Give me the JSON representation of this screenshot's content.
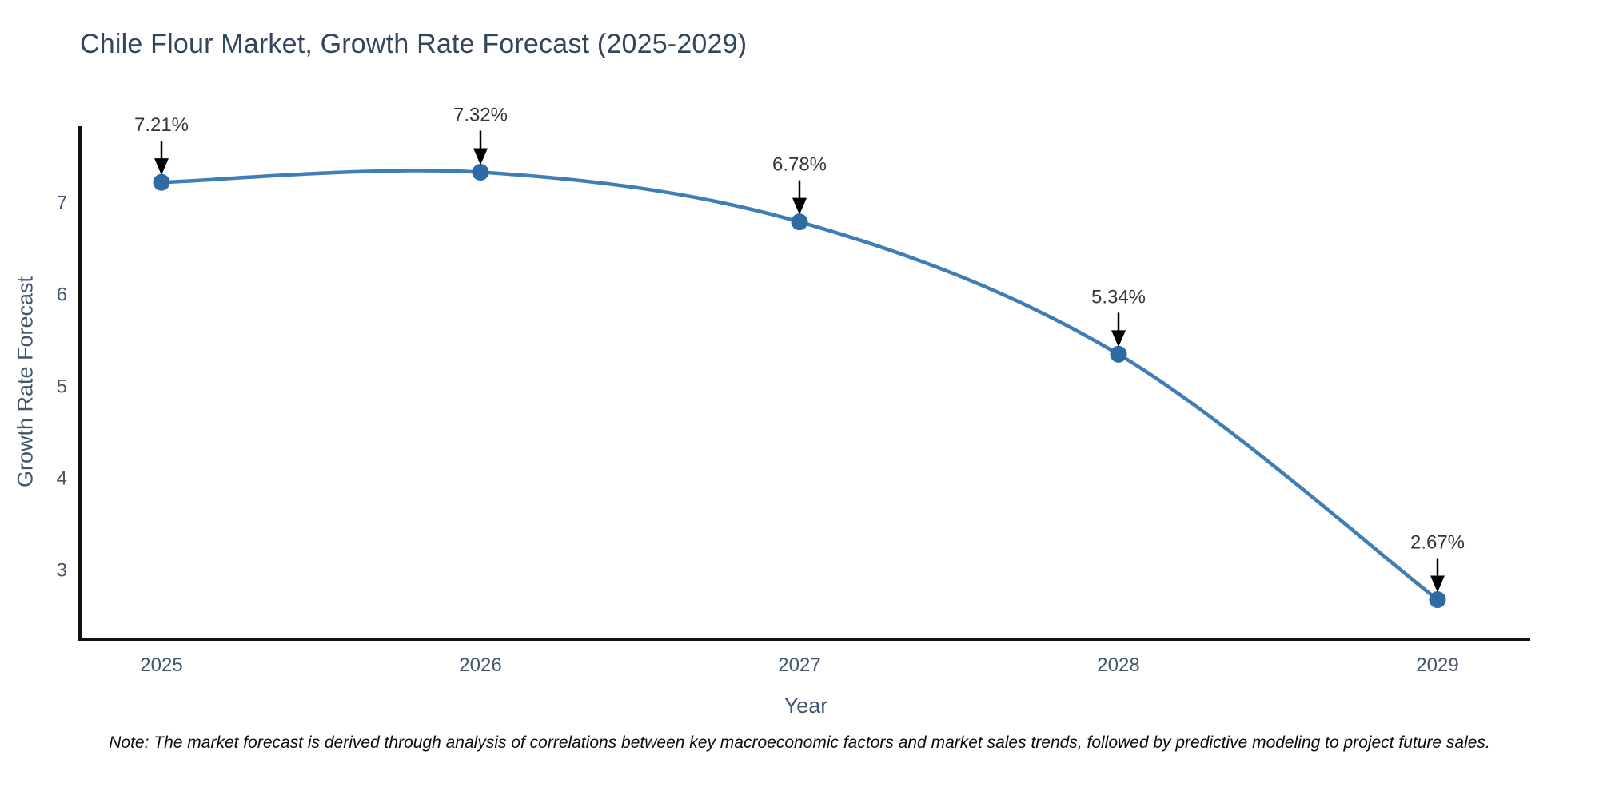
{
  "header": {
    "title": "Chile Flour Market, Growth Rate Forecast (2025-2029)"
  },
  "footnote": "Note: The market forecast is derived through analysis of correlations between key macroeconomic factors and market sales trends, followed by predictive modeling to project future sales.",
  "chart_data": {
    "type": "line",
    "title": "Chile Flour Market, Growth Rate Forecast (2025-2029)",
    "categories": [
      "2025",
      "2026",
      "2027",
      "2028",
      "2029"
    ],
    "values": [
      7.21,
      7.32,
      6.78,
      5.34,
      2.67
    ],
    "point_labels": [
      "7.21%",
      "7.32%",
      "6.78%",
      "5.34%",
      "2.67%"
    ],
    "xlabel": "Year",
    "ylabel": "Growth Rate Forecast",
    "yticks": [
      3,
      4,
      5,
      6,
      7
    ],
    "ylim": [
      2.24,
      7.82
    ],
    "line_shape": "spline",
    "grid": false,
    "legend": "none",
    "colors": {
      "line": "#3e7db5",
      "marker": "#2e6ba4",
      "axis": "#111111",
      "annotation": "#000000"
    }
  }
}
